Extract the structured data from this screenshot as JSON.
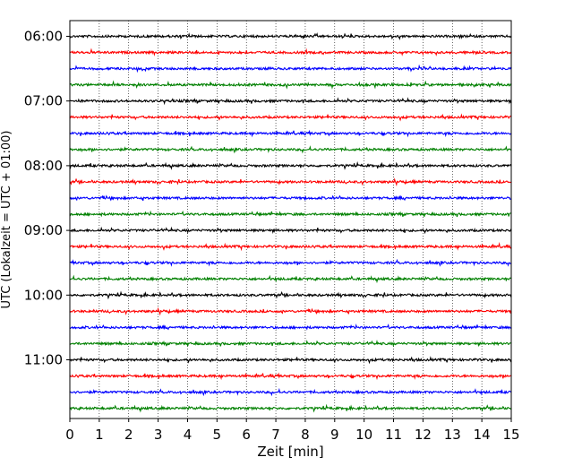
{
  "chart_data": {
    "type": "line",
    "title": "",
    "xlabel": "Zeit  [min]",
    "ylabel": "UTC (Lokalzeit = UTC + 01:00)",
    "xlim": [
      0,
      15
    ],
    "x_ticks": [
      "0",
      "1",
      "2",
      "3",
      "4",
      "5",
      "6",
      "7",
      "8",
      "9",
      "10",
      "11",
      "12",
      "13",
      "14",
      "15"
    ],
    "y_ticks": [
      "06:00",
      "07:00",
      "08:00",
      "09:00",
      "10:00",
      "11:00"
    ],
    "grid": "vertical dotted",
    "trace_interval_minutes": 15,
    "trace_colors": [
      "#000000",
      "#ff0000",
      "#0000ff",
      "#008000"
    ],
    "traces_start": [
      "06:00",
      "06:15",
      "06:30",
      "06:45",
      "07:00",
      "07:15",
      "07:30",
      "07:45",
      "08:00",
      "08:15",
      "08:30",
      "08:45",
      "09:00",
      "09:15",
      "09:30",
      "09:45",
      "10:00",
      "10:15",
      "10:30",
      "10:45",
      "11:00",
      "11:15",
      "11:30",
      "11:45"
    ]
  }
}
